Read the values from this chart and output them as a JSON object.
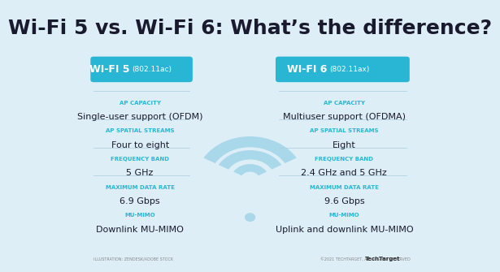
{
  "title": "Wi-Fi 5 vs. Wi-Fi 6: What’s the difference?",
  "bg_color": "#ddeef7",
  "title_color": "#1a1a2e",
  "title_fontsize": 18,
  "left_header": "WI-FI 5",
  "left_subheader": "(802.11ac)",
  "left_header_bg": "#29b6d5",
  "left_header_text_color": "#ffffff",
  "right_header": "WI-FI 6",
  "right_subheader": "(802.11ax)",
  "right_header_bg": "#29b6d5",
  "right_header_text_color": "#ffffff",
  "label_color": "#29b6d5",
  "value_color": "#1a1a2e",
  "label_fontsize": 5,
  "value_fontsize": 8,
  "left_labels": [
    "AP CAPACITY",
    "AP SPATIAL STREAMS",
    "FREQUENCY BAND",
    "MAXIMUM DATA RATE",
    "MU-MIMO"
  ],
  "left_values": [
    "Single-user support (OFDM)",
    "Four to eight",
    "5 GHz",
    "6.9 Gbps",
    "Downlink MU-MIMO"
  ],
  "right_labels": [
    "AP CAPACITY",
    "AP SPATIAL STREAMS",
    "FREQUENCY BAND",
    "MAXIMUM DATA RATE",
    "MU-MIMO"
  ],
  "right_values": [
    "Multiuser support (OFDMA)",
    "Eight",
    "2.4 GHz and 5 GHz",
    "9.6 Gbps",
    "Uplink and downlink MU-MIMO"
  ],
  "footer_left": "ILLUSTRATION: ZENDESK/ADOBE STOCK",
  "footer_right": "©2021 TECHTARGET, ALL RIGHTS RESERVED",
  "footer_brand": "TechTarget"
}
